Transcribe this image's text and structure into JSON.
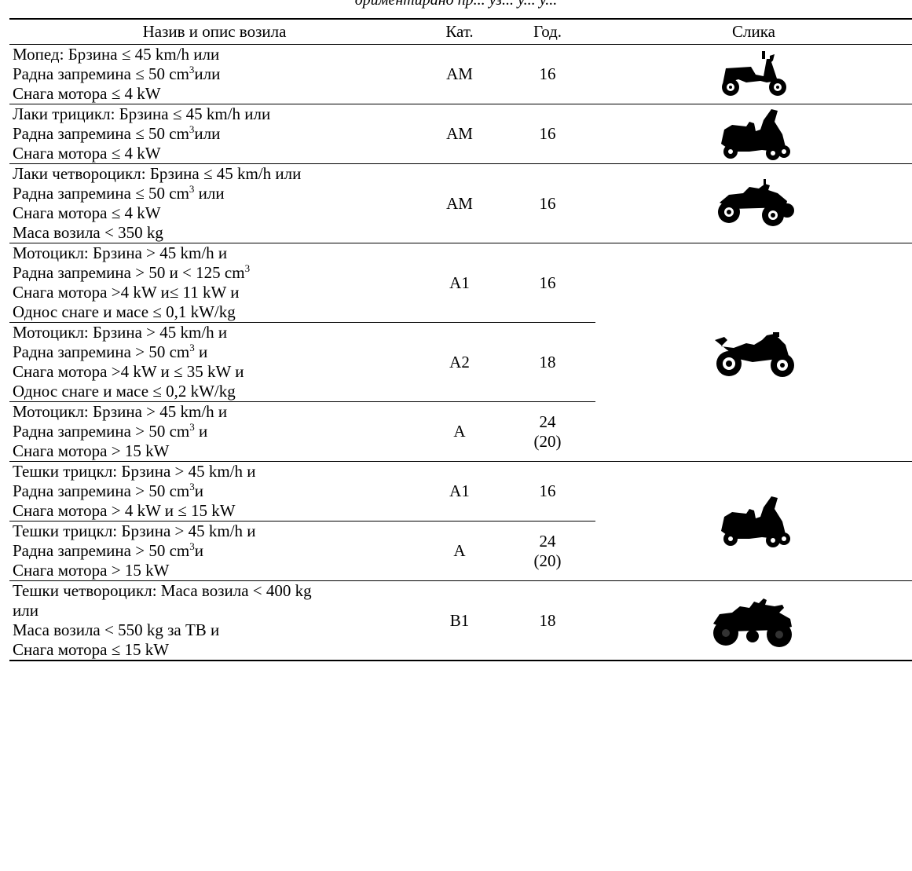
{
  "caption": "ориментирано пр... уз... у... у...",
  "table": {
    "headers": {
      "name": "Назив и опис возила",
      "category": "Кат.",
      "age": "Год.",
      "image": "Слика"
    },
    "rows": [
      {
        "lines": [
          "Мопед: Брзина ≤ 45 km/h или",
          "Радна запремина ≤ 50 cm",
          "Снага мотора ≤ 4 kW"
        ],
        "sup": "3",
        "sup_tail": "или",
        "category": "AM",
        "age": "16",
        "age_note": "",
        "image": "moped-icon"
      },
      {
        "lines": [
          "Лаки трицикл: Брзина ≤ 45 km/h или",
          "Радна запремина ≤ 50 cm",
          "Снага мотора ≤ 4 kW"
        ],
        "sup": "3",
        "sup_tail": "или",
        "category": "AM",
        "age": "16",
        "age_note": "",
        "image": "light-tricycle-icon"
      },
      {
        "lines": [
          "Лаки четвороцикл: Брзина ≤ 45 km/h или",
          "Радна запремина ≤ 50 cm",
          "Снага мотора ≤ 4 kW",
          "Маса возила < 350 kg"
        ],
        "sup": "3",
        "sup_tail": " или",
        "category": "AM",
        "age": "16",
        "age_note": "",
        "image": "light-quadricycle-icon"
      },
      {
        "lines": [
          "Мотоцикл: Брзина > 45 km/h и",
          "Радна запремина > 50 и < 125 cm",
          "Снага мотора >4 kW и≤ 11 kW и",
          "Однос снаге и масе ≤ 0,1 kW/kg"
        ],
        "sup": "3",
        "sup_tail": "",
        "category": "A1",
        "age": "16",
        "age_note": "",
        "image": "motorcycle-icon"
      },
      {
        "lines": [
          "Мотоцикл: Брзина > 45 km/h и",
          "Радна запремина > 50 cm",
          "Снага мотора >4 kW и ≤ 35 kW и",
          "Однос снаге и масе ≤ 0,2 kW/kg"
        ],
        "sup": "3",
        "sup_tail": " и",
        "category": "A2",
        "age": "18",
        "age_note": "",
        "image": ""
      },
      {
        "lines": [
          "Мотоцикл: Брзина > 45 km/h и",
          "Радна запремина > 50 cm",
          "Снага мотора > 15 kW"
        ],
        "sup": "3",
        "sup_tail": " и",
        "category": "A",
        "age": "24",
        "age_note": "(20)",
        "image": ""
      },
      {
        "lines": [
          "Тешки трицкл: Брзина > 45 km/h и",
          "Радна запремина > 50 cm",
          "Снага мотора > 4 kW и ≤ 15 kW"
        ],
        "sup": "3",
        "sup_tail": "и",
        "category": "A1",
        "age": "16",
        "age_note": "",
        "image": "heavy-tricycle-icon"
      },
      {
        "lines": [
          "Тешки трицкл: Брзина > 45 km/h и",
          "Радна запремина > 50 cm",
          "Снага мотора > 15 kW"
        ],
        "sup": "3",
        "sup_tail": "и",
        "category": "A",
        "age": "24",
        "age_note": "(20)",
        "image": ""
      },
      {
        "lines": [
          "Тешки четвороцикл: Маса возила < 400 kg",
          "или",
          "Маса возила < 550 kg за ТВ и",
          "Снага мотора ≤ 15 kW"
        ],
        "sup": "",
        "sup_tail": "",
        "category": "B1",
        "age": "18",
        "age_note": "",
        "image": "heavy-quadricycle-icon"
      }
    ]
  }
}
